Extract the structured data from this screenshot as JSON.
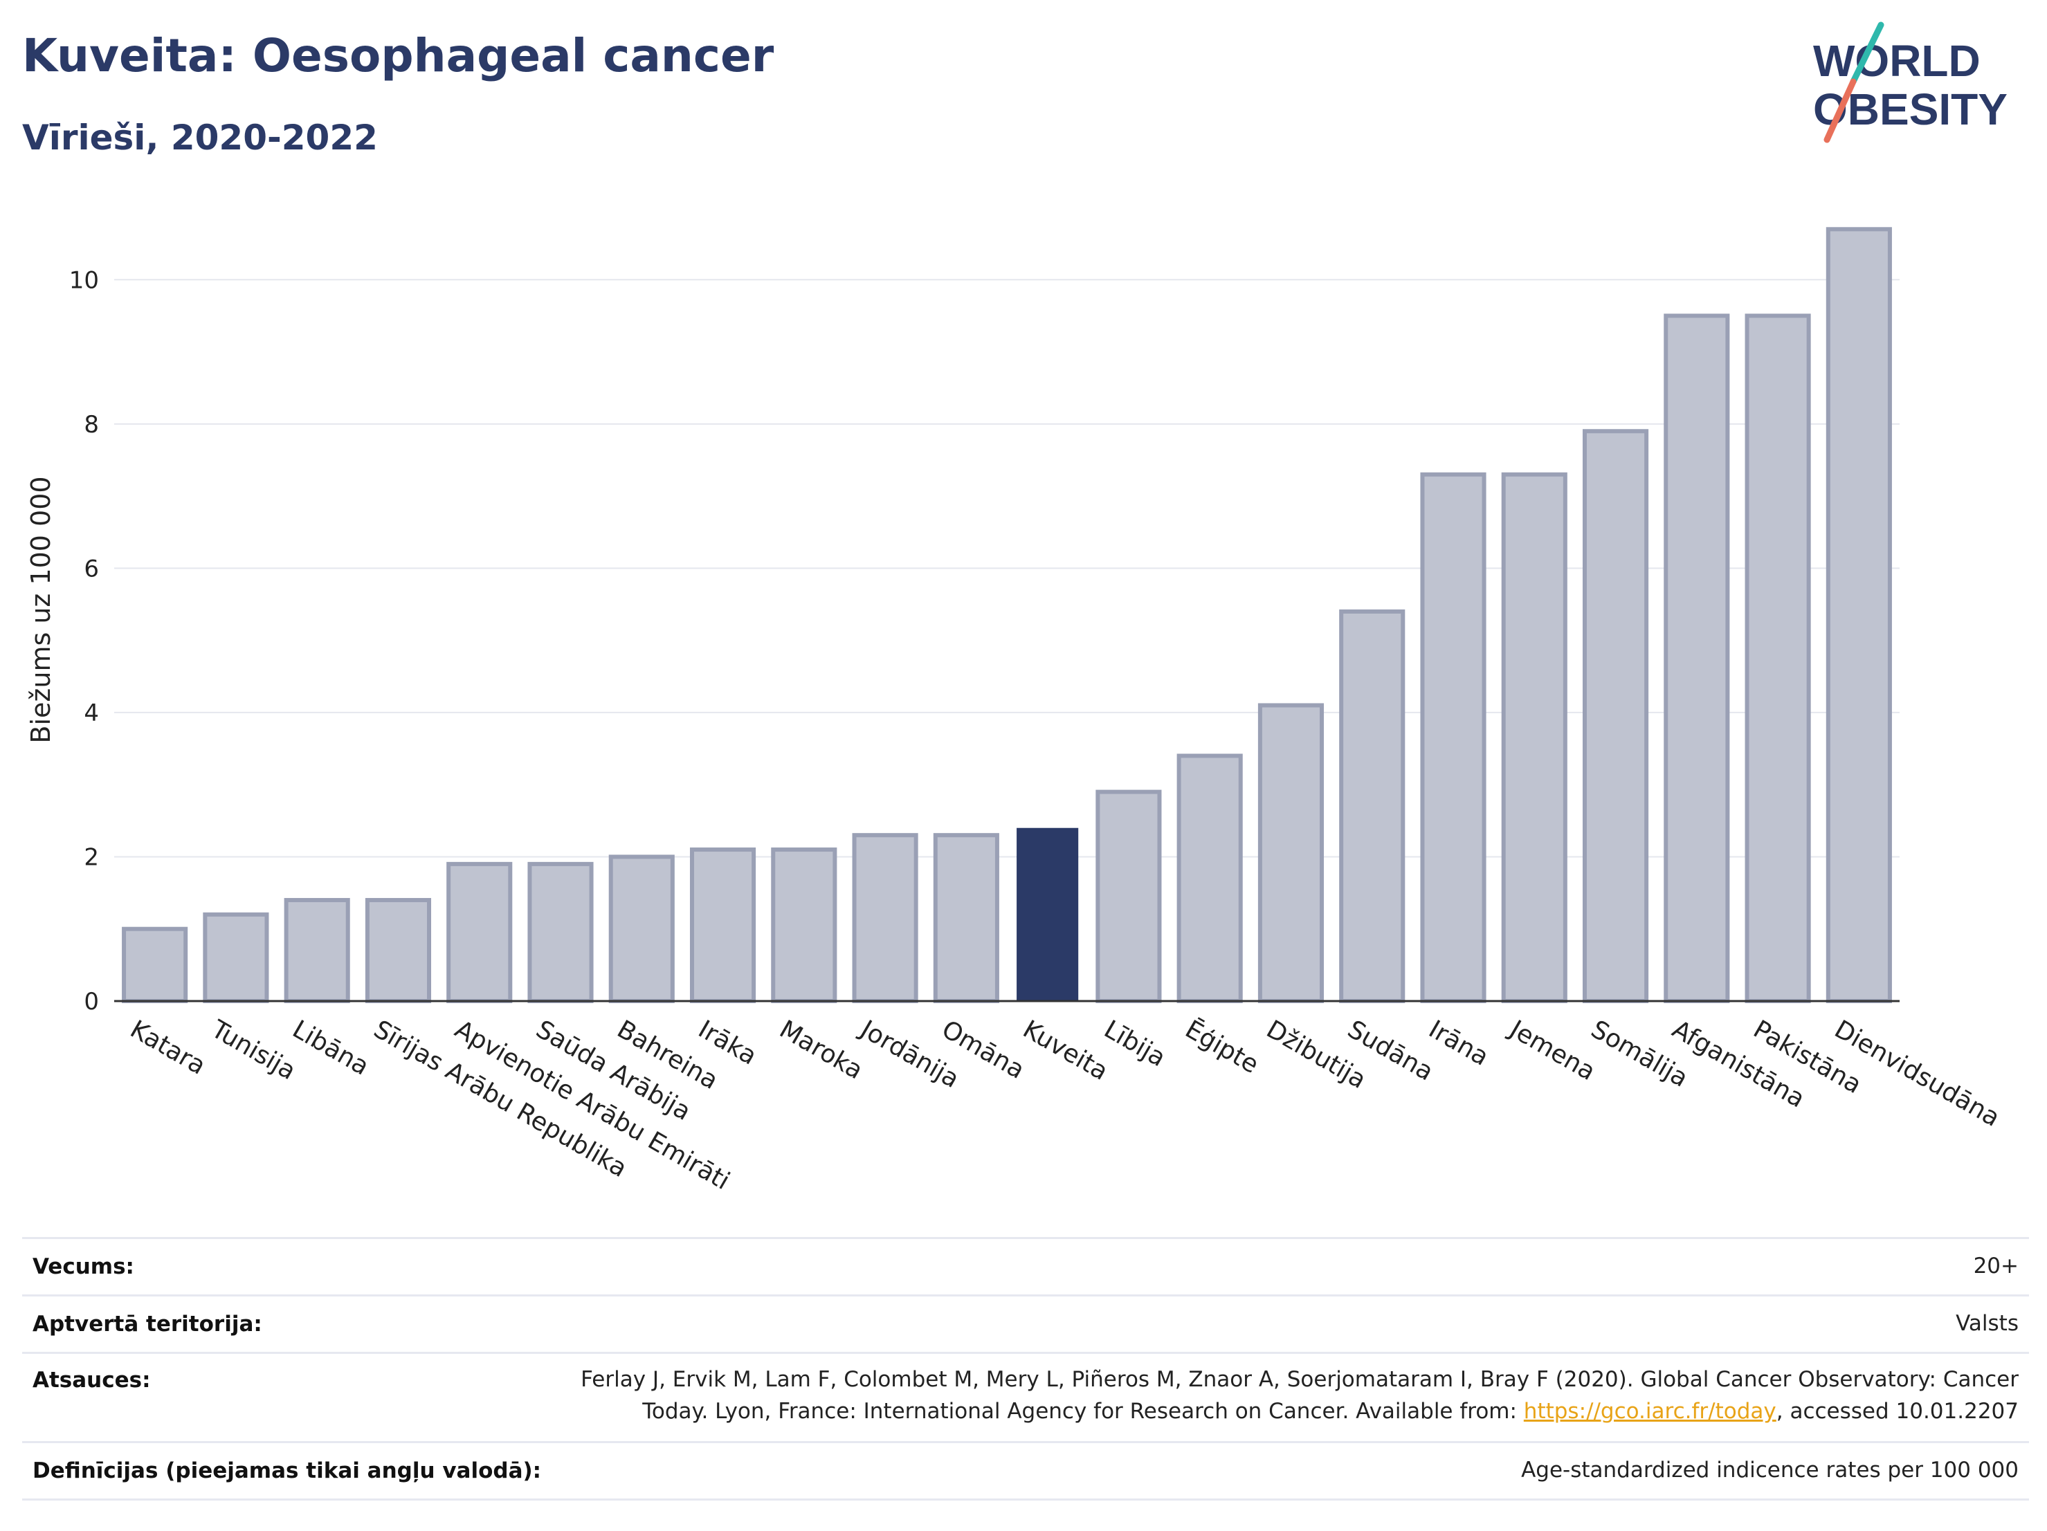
{
  "title": "Kuveita: Oesophageal cancer",
  "subtitle": "Vīrieši, 2020-2022",
  "logo": {
    "line1": "WORLD",
    "line2": "OBESITY"
  },
  "colors": {
    "highlight": "#2b3a67",
    "bar_fill": "#bfc3d0",
    "bar_stroke": "#9aa0b5",
    "grid": "#e5e7ee",
    "link": "#e8a317",
    "title": "#2b3a67"
  },
  "chart_data": {
    "type": "bar",
    "ylabel": "Biežums uz 100 000",
    "ylim": [
      0,
      11
    ],
    "yticks": [
      0,
      2,
      4,
      6,
      8,
      10
    ],
    "grid": true,
    "highlight": "Kuveita",
    "categories": [
      "Katara",
      "Tunisija",
      "Libāna",
      "Sīrijas Arābu Republika",
      "Apvienotie Arābu Emirāti",
      "Saūda Arābija",
      "Bahreina",
      "Irāka",
      "Maroka",
      "Jordānija",
      "Omāna",
      "Kuveita",
      "Lībija",
      "Ēģipte",
      "Džibutija",
      "Sudāna",
      "Irāna",
      "Jemena",
      "Somālija",
      "Afganistāna",
      "Pakistāna",
      "Dienvidsudāna"
    ],
    "values": [
      1.0,
      1.2,
      1.4,
      1.4,
      1.9,
      1.9,
      2.0,
      2.1,
      2.1,
      2.3,
      2.3,
      2.4,
      2.9,
      3.4,
      4.1,
      5.4,
      7.3,
      7.3,
      7.9,
      9.5,
      9.5,
      10.7
    ]
  },
  "meta": {
    "age_label": "Vecums:",
    "age_value": "20+",
    "coverage_label": "Aptvertā teritorija:",
    "coverage_value": "Valsts",
    "refs_label": "Atsauces:",
    "refs_line1": "Ferlay J, Ervik M, Lam F, Colombet M, Mery L, Piñeros M, Znaor A, Soerjomataram I, Bray F (2020). Global Cancer Observatory: Cancer",
    "refs_line2_pre": "Today. Lyon, France: International Agency for Research on Cancer. Available from: ",
    "refs_link": "https://gco.iarc.fr/today",
    "refs_line2_post": ", accessed 10.01.2207",
    "defs_label": "Definīcijas (pieejamas tikai angļu valodā):",
    "defs_value": "Age-standardized indicence rates per 100 000"
  }
}
